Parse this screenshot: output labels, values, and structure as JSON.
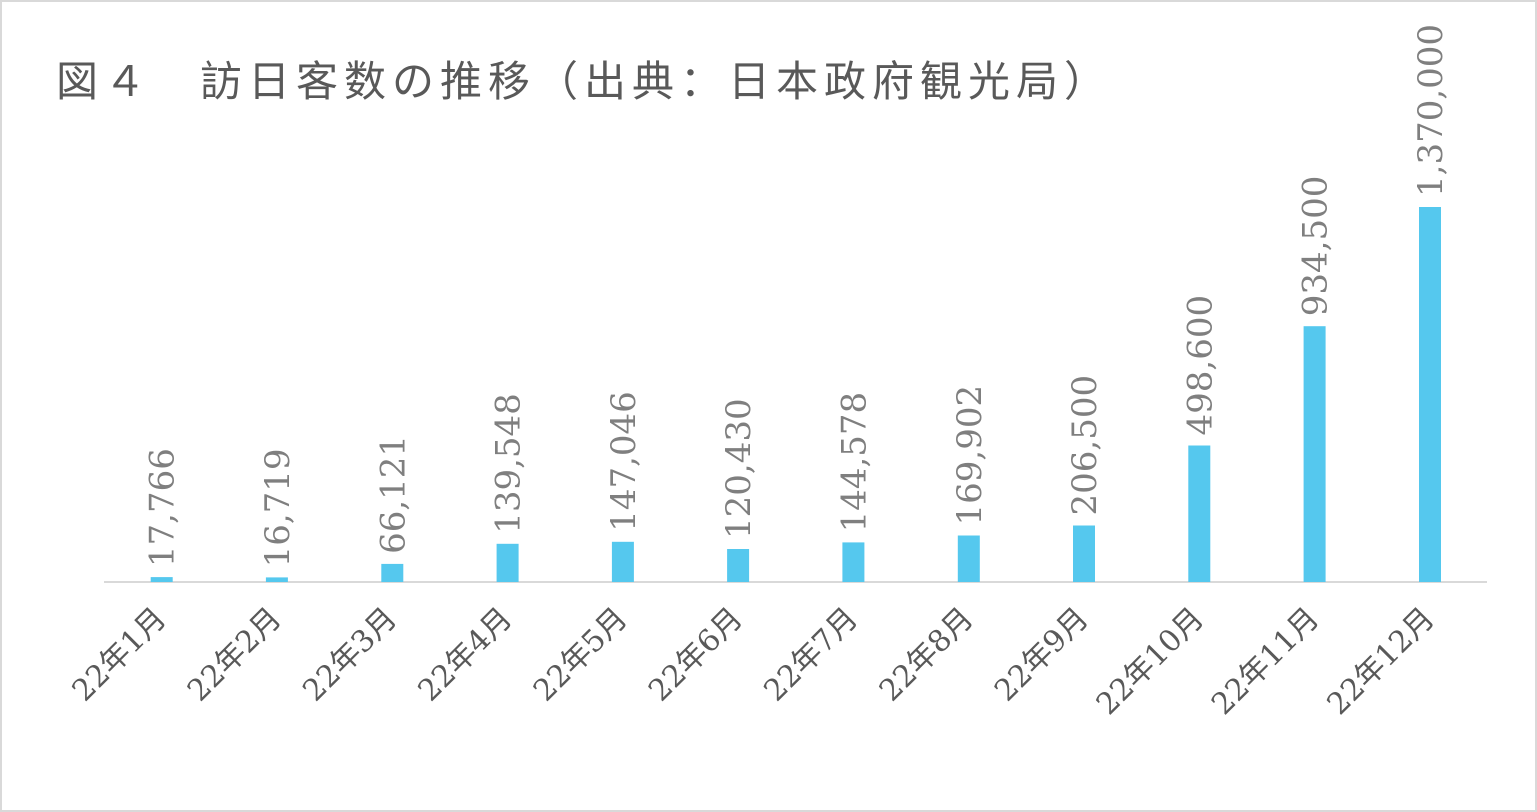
{
  "chart_data": {
    "type": "bar",
    "title": "図４　訪日客数の推移（出典：日本政府観光局）",
    "categories": [
      "22年1月",
      "22年2月",
      "22年3月",
      "22年4月",
      "22年5月",
      "22年6月",
      "22年7月",
      "22年8月",
      "22年9月",
      "22年10月",
      "22年11月",
      "22年12月"
    ],
    "values": [
      17766,
      16719,
      66121,
      139548,
      147046,
      120430,
      144578,
      169902,
      206500,
      498600,
      934500,
      1370000
    ],
    "data_labels": [
      "17,766",
      "16,719",
      "66,121",
      "139,548",
      "147,046",
      "120,430",
      "144,578",
      "169,902",
      "206,500",
      "498,600",
      "934,500",
      "1,370,000"
    ],
    "xlabel": "",
    "ylabel": "",
    "ylim": [
      0,
      1370000
    ],
    "grid": false,
    "legend": "none",
    "bar_color": "#55c8ee",
    "label_color": "#7f7f7f",
    "axis_color": "#d9d9d9"
  }
}
